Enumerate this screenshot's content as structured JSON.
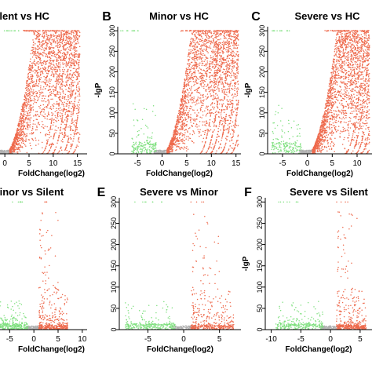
{
  "colors": {
    "up": "#ee6a4d",
    "down": "#7fe07f",
    "ns": "#b0b0b0",
    "axis": "#000000"
  },
  "chart_data": [
    {
      "panel": "",
      "title": "Silent vs HC",
      "type": "scatter",
      "xlabel": "FoldChange(log2)",
      "ylabel": "",
      "xticks": [
        "0",
        "5",
        "10",
        "15"
      ],
      "yticks": [],
      "xlim": [
        -1,
        17
      ],
      "ylim": [
        0,
        310
      ],
      "max_x": 15.5,
      "cap_y": 300,
      "neg_reach": 4,
      "density": 1.0
    },
    {
      "panel": "B",
      "title": "Minor vs HC",
      "type": "scatter",
      "xlabel": "FoldChange(log2)",
      "ylabel": "-lgP",
      "xticks": [
        "-5",
        "0",
        "5",
        "10",
        "15"
      ],
      "yticks": [
        "0",
        "50",
        "100",
        "150",
        "200",
        "250",
        "300"
      ],
      "xlim": [
        -9,
        16
      ],
      "ylim": [
        0,
        310
      ],
      "max_x": 15.5,
      "cap_y": 300,
      "neg_reach": 5,
      "density": 1.0
    },
    {
      "panel": "C",
      "title": "Severe vs HC",
      "type": "scatter",
      "xlabel": "FoldChange(log2)",
      "ylabel": "-lgP",
      "xticks": [
        "-5",
        "0",
        "5",
        "10"
      ],
      "yticks": [
        "0",
        "50",
        "100",
        "150",
        "200",
        "250",
        "300"
      ],
      "xlim": [
        -8,
        13
      ],
      "ylim": [
        0,
        310
      ],
      "max_x": 12.5,
      "cap_y": 300,
      "neg_reach": 6,
      "density": 1.0
    },
    {
      "panel": "",
      "title": "Minor vs Silent",
      "type": "scatter",
      "xlabel": "FoldChange(log2)",
      "ylabel": "",
      "xticks": [
        "-5",
        "0",
        "5",
        "10"
      ],
      "yticks": [],
      "xlim": [
        -7,
        11
      ],
      "ylim": [
        0,
        310
      ],
      "max_x": 7,
      "cap_y": 300,
      "neg_reach": 6,
      "density": 0.35
    },
    {
      "panel": "E",
      "title": "Severe vs Minor",
      "type": "scatter",
      "xlabel": "FoldChange(log2)",
      "ylabel": "",
      "xticks": [
        "-5",
        "0",
        "5"
      ],
      "yticks": [
        "0",
        "50",
        "100",
        "150",
        "200",
        "250",
        "300"
      ],
      "xlim": [
        -9,
        8
      ],
      "ylim": [
        0,
        310
      ],
      "max_x": 7,
      "cap_y": 300,
      "neg_reach": 7,
      "density": 0.35
    },
    {
      "panel": "F",
      "title": "Severe vs Silent",
      "type": "scatter",
      "xlabel": "FoldChange(log2)",
      "ylabel": "-lgP",
      "xticks": [
        "-10",
        "-5",
        "0",
        "5"
      ],
      "yticks": [
        "0",
        "50",
        "100",
        "150",
        "200",
        "250",
        "300"
      ],
      "xlim": [
        -11,
        7
      ],
      "ylim": [
        0,
        310
      ],
      "max_x": 6,
      "cap_y": 300,
      "neg_reach": 8,
      "density": 0.35
    }
  ]
}
